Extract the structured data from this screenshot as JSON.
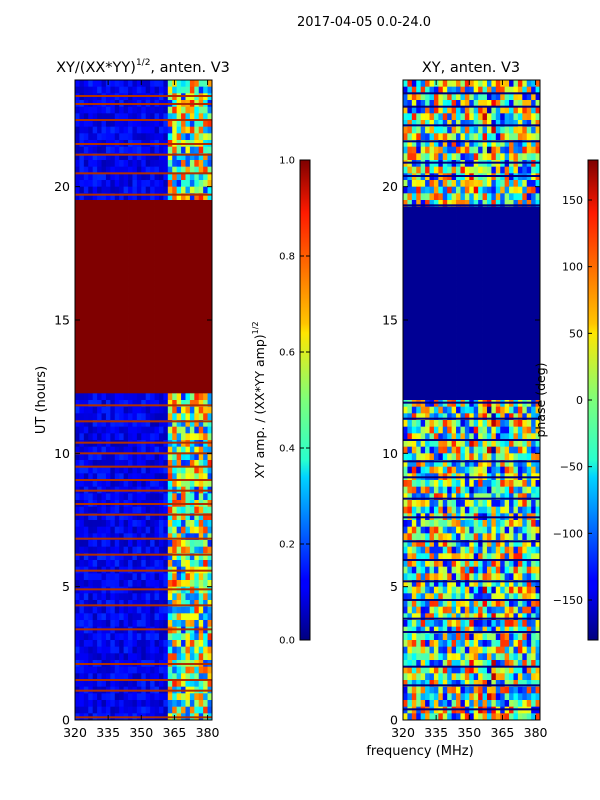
{
  "figure_title": "2017-04-05 0.0-24.0",
  "shared_xlabel": "frequency (MHz)",
  "chart_data": [
    {
      "type": "heatmap",
      "title": "XY/(XX*YY)",
      "title_exp": "1/2",
      "title_suffix": ", anten. V3",
      "xlabel": "",
      "ylabel": "UT (hours)",
      "xlim": [
        320,
        382
      ],
      "ylim": [
        0,
        24
      ],
      "xticks": [
        320,
        335,
        350,
        365,
        380
      ],
      "yticks": [
        0,
        5,
        10,
        15,
        20
      ],
      "colorbar": {
        "label": "XY amp. / (XX*YY amp)",
        "label_exp": "1/2",
        "range": [
          0.0,
          1.0
        ],
        "ticks": [
          "0.0",
          "0.2",
          "0.4",
          "0.6",
          "0.8",
          "1.0"
        ]
      },
      "saturated_band_ut": [
        12.2,
        19.5
      ],
      "flagged_lines_ut": [
        0.1,
        1.1,
        1.5,
        2.1,
        3.4,
        4.3,
        4.9,
        5.6,
        6.2,
        6.8,
        7.7,
        8.1,
        8.6,
        9.0,
        9.5,
        10.0,
        10.4,
        11.2,
        11.8,
        19.7,
        20.5,
        21.2,
        21.6,
        22.5,
        23.1,
        23.4
      ]
    },
    {
      "type": "heatmap",
      "title": "XY, anten. V3",
      "xlabel": "",
      "ylabel": "",
      "xlim": [
        320,
        382
      ],
      "ylim": [
        0,
        24
      ],
      "xticks": [
        320,
        335,
        350,
        365,
        380
      ],
      "yticks": [
        0,
        5,
        10,
        15,
        20
      ],
      "colorbar": {
        "label": "phase (deg)",
        "range": [
          -180,
          180
        ],
        "ticks": [
          "150",
          "100",
          "50",
          "0",
          "−50",
          "−100",
          "−150"
        ],
        "tick_values": [
          150,
          100,
          50,
          0,
          -50,
          -100,
          -150
        ]
      },
      "blank_band_ut": [
        12.1,
        19.2
      ],
      "flagged_lines_ut": [
        0.4,
        1.3,
        2.0,
        3.3,
        3.8,
        4.5,
        5.2,
        6.0,
        6.7,
        7.6,
        8.3,
        9.1,
        9.7,
        10.5,
        11.3,
        11.9,
        19.3,
        20.4,
        20.9,
        21.7,
        22.3,
        23.0,
        23.5
      ]
    }
  ]
}
